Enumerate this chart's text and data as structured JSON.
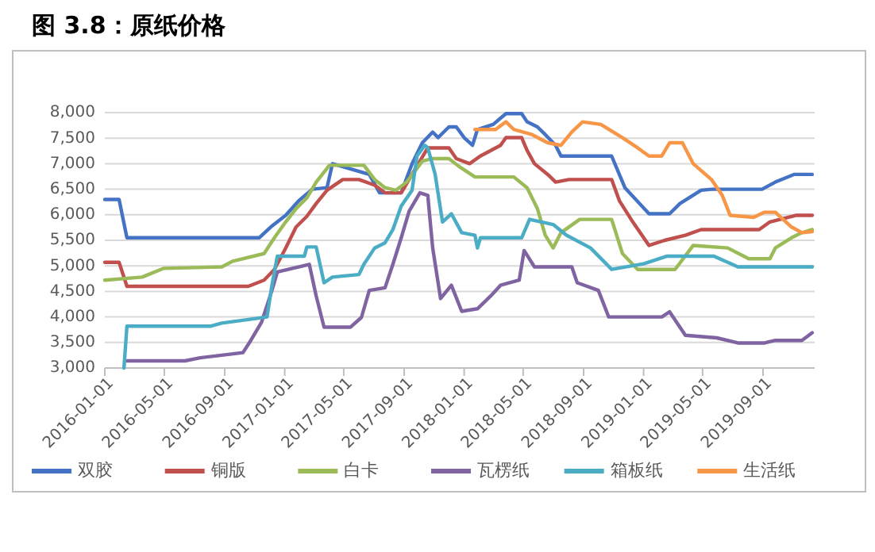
{
  "chart_data": {
    "type": "line",
    "title": "图 3.8：原纸价格",
    "legend": "bottom",
    "grid": "y",
    "marker": "none",
    "line_style": "solid",
    "xlim": [
      "2016-01-01",
      "2019-12-15"
    ],
    "xticks": [
      {
        "value": "2016-01-01",
        "label": "2016-01-01"
      },
      {
        "value": "2016-05-01",
        "label": "2016-05-01"
      },
      {
        "value": "2016-09-01",
        "label": "2016-09-01"
      },
      {
        "value": "2017-01-01",
        "label": "2017-01-01"
      },
      {
        "value": "2017-05-01",
        "label": "2017-05-01"
      },
      {
        "value": "2017-09-01",
        "label": "2017-09-01"
      },
      {
        "value": "2018-01-01",
        "label": "2018-01-01"
      },
      {
        "value": "2018-05-01",
        "label": "2018-05-01"
      },
      {
        "value": "2018-09-01",
        "label": "2018-09-01"
      },
      {
        "value": "2019-01-01",
        "label": "2019-01-01"
      },
      {
        "value": "2019-05-01",
        "label": "2019-05-01"
      },
      {
        "value": "2019-09-01",
        "label": "2019-09-01"
      }
    ],
    "ylim": [
      3000,
      8000
    ],
    "yticks": [
      {
        "value": 3000,
        "label": "3,000"
      },
      {
        "value": 3500,
        "label": "3,500"
      },
      {
        "value": 4000,
        "label": "4,000"
      },
      {
        "value": 4500,
        "label": "4,500"
      },
      {
        "value": 5000,
        "label": "5,000"
      },
      {
        "value": 5500,
        "label": "5,500"
      },
      {
        "value": 6000,
        "label": "6,000"
      },
      {
        "value": 6500,
        "label": "6,500"
      },
      {
        "value": 7000,
        "label": "7,000"
      },
      {
        "value": 7500,
        "label": "7,500"
      },
      {
        "value": 8000,
        "label": "8,000"
      }
    ],
    "series": [
      {
        "name": "双胶",
        "color": "#4472c4",
        "x": [
          "2016-01-01",
          "2016-01-30",
          "2016-02-15",
          "2016-11-10",
          "2016-12-06",
          "2017-01-03",
          "2017-01-29",
          "2017-02-26",
          "2017-03-28",
          "2017-04-08",
          "2017-06-22",
          "2017-07-13",
          "2017-08-26",
          "2017-09-17",
          "2017-10-08",
          "2017-10-29",
          "2017-11-09",
          "2017-12-01",
          "2017-12-16",
          "2018-01-01",
          "2018-01-18",
          "2018-01-28",
          "2018-03-01",
          "2018-03-27",
          "2018-04-28",
          "2018-05-09",
          "2018-05-30",
          "2018-06-15",
          "2018-07-06",
          "2018-07-17",
          "2018-10-28",
          "2018-11-24",
          "2019-01-12",
          "2019-02-23",
          "2019-03-16",
          "2019-04-28",
          "2019-05-19",
          "2019-08-30",
          "2019-09-26",
          "2019-11-03",
          "2019-12-10"
        ],
        "values": [
          6300,
          6300,
          5550,
          5550,
          5780,
          5990,
          6270,
          6500,
          6530,
          7000,
          6790,
          6430,
          6430,
          7000,
          7410,
          7620,
          7510,
          7720,
          7720,
          7510,
          7360,
          7670,
          7770,
          7980,
          7980,
          7820,
          7720,
          7570,
          7360,
          7150,
          7150,
          6530,
          6020,
          6020,
          6220,
          6480,
          6500,
          6500,
          6640,
          6790,
          6790
        ]
      },
      {
        "name": "铜版",
        "color": "#c0504d",
        "x": [
          "2016-01-01",
          "2016-01-30",
          "2016-02-15",
          "2016-10-19",
          "2016-11-20",
          "2016-12-11",
          "2017-01-03",
          "2017-01-24",
          "2017-02-15",
          "2017-03-06",
          "2017-03-28",
          "2017-04-29",
          "2017-06-01",
          "2017-07-03",
          "2017-07-24",
          "2017-08-26",
          "2017-09-17",
          "2017-10-19",
          "2017-12-01",
          "2017-12-16",
          "2018-01-12",
          "2018-02-03",
          "2018-03-16",
          "2018-03-27",
          "2018-04-28",
          "2018-05-09",
          "2018-05-24",
          "2018-06-20",
          "2018-07-06",
          "2018-08-02",
          "2018-10-28",
          "2018-11-13",
          "2018-12-10",
          "2019-01-12",
          "2019-02-13",
          "2019-03-27",
          "2019-04-28",
          "2019-08-24",
          "2019-09-15",
          "2019-11-08",
          "2019-12-10"
        ],
        "values": [
          5070,
          5070,
          4600,
          4600,
          4720,
          4930,
          5350,
          5760,
          5970,
          6220,
          6480,
          6690,
          6690,
          6580,
          6430,
          6430,
          6790,
          7310,
          7310,
          7100,
          7000,
          7150,
          7360,
          7510,
          7510,
          7260,
          7000,
          6790,
          6640,
          6690,
          6690,
          6270,
          5860,
          5400,
          5500,
          5600,
          5710,
          5710,
          5860,
          5990,
          5990
        ]
      },
      {
        "name": "白卡",
        "color": "#9bbb59",
        "x": [
          "2016-01-01",
          "2016-03-17",
          "2016-04-29",
          "2016-08-26",
          "2016-09-17",
          "2016-11-20",
          "2016-12-11",
          "2017-01-03",
          "2017-01-24",
          "2017-02-15",
          "2017-03-06",
          "2017-04-02",
          "2017-06-11",
          "2017-07-03",
          "2017-07-24",
          "2017-08-15",
          "2017-09-06",
          "2017-10-08",
          "2017-10-29",
          "2017-12-01",
          "2017-12-21",
          "2018-01-23",
          "2018-04-12",
          "2018-05-09",
          "2018-05-30",
          "2018-06-15",
          "2018-07-01",
          "2018-07-17",
          "2018-08-24",
          "2018-10-28",
          "2018-11-19",
          "2018-12-20",
          "2019-03-06",
          "2019-04-12",
          "2019-06-21",
          "2019-08-03",
          "2019-09-15",
          "2019-09-26",
          "2019-10-29",
          "2019-11-19",
          "2019-12-10"
        ],
        "values": [
          4720,
          4780,
          4950,
          4980,
          5090,
          5240,
          5550,
          5860,
          6120,
          6330,
          6640,
          6970,
          6970,
          6690,
          6530,
          6480,
          6640,
          7050,
          7100,
          7100,
          6950,
          6740,
          6740,
          6530,
          6120,
          5600,
          5350,
          5650,
          5910,
          5910,
          5240,
          4930,
          4930,
          5400,
          5350,
          5140,
          5140,
          5350,
          5550,
          5650,
          5710
        ]
      },
      {
        "name": "瓦楞纸",
        "color": "#8064a2",
        "x": [
          "2016-02-15",
          "2016-06-12",
          "2016-07-13",
          "2016-08-26",
          "2016-10-08",
          "2016-10-24",
          "2016-11-15",
          "2016-12-06",
          "2016-12-17",
          "2017-02-20",
          "2017-03-06",
          "2017-03-22",
          "2017-05-15",
          "2017-06-06",
          "2017-06-22",
          "2017-07-24",
          "2017-08-09",
          "2017-08-26",
          "2017-09-11",
          "2017-10-03",
          "2017-10-19",
          "2017-10-29",
          "2017-11-14",
          "2017-12-06",
          "2017-12-27",
          "2018-01-28",
          "2018-02-24",
          "2018-03-16",
          "2018-04-23",
          "2018-05-03",
          "2018-05-24",
          "2018-08-08",
          "2018-08-19",
          "2018-10-01",
          "2018-10-22",
          "2019-02-07",
          "2019-02-23",
          "2019-03-27",
          "2019-05-30",
          "2019-07-12",
          "2019-09-04",
          "2019-09-26",
          "2019-11-19",
          "2019-12-10"
        ],
        "values": [
          3140,
          3140,
          3200,
          3250,
          3300,
          3540,
          3900,
          4520,
          4880,
          5030,
          4410,
          3800,
          3800,
          3990,
          4520,
          4570,
          5030,
          5550,
          6070,
          6430,
          6380,
          5350,
          4360,
          4620,
          4110,
          4160,
          4410,
          4620,
          4720,
          5300,
          4980,
          4980,
          4670,
          4520,
          4000,
          4000,
          4100,
          3640,
          3590,
          3490,
          3490,
          3540,
          3540,
          3690
        ]
      },
      {
        "name": "箱板纸",
        "color": "#4bacc6",
        "x": [
          "2016-02-09",
          "2016-02-15",
          "2016-08-04",
          "2016-08-26",
          "2016-10-19",
          "2016-11-26",
          "2016-12-06",
          "2016-12-17",
          "2017-02-10",
          "2017-02-15",
          "2017-03-06",
          "2017-03-22",
          "2017-04-08",
          "2017-06-01",
          "2017-06-11",
          "2017-07-03",
          "2017-07-24",
          "2017-08-09",
          "2017-08-26",
          "2017-09-17",
          "2017-09-27",
          "2017-10-13",
          "2017-10-19",
          "2017-11-03",
          "2017-11-18",
          "2017-12-06",
          "2017-12-27",
          "2018-01-23",
          "2018-01-28",
          "2018-02-03",
          "2018-04-28",
          "2018-05-14",
          "2018-07-01",
          "2018-07-28",
          "2018-09-15",
          "2018-10-17",
          "2018-10-28",
          "2019-01-01",
          "2019-02-18",
          "2019-05-24",
          "2019-07-12",
          "2019-12-10"
        ],
        "values": [
          3000,
          3820,
          3820,
          3880,
          3950,
          4000,
          4620,
          5190,
          5190,
          5370,
          5370,
          4670,
          4780,
          4830,
          5030,
          5350,
          5450,
          5710,
          6170,
          6480,
          7150,
          7360,
          7310,
          6790,
          5860,
          6020,
          5650,
          5600,
          5350,
          5550,
          5550,
          5910,
          5810,
          5600,
          5350,
          5040,
          4930,
          5040,
          5190,
          5190,
          4980,
          4980
        ]
      },
      {
        "name": "生活纸",
        "color": "#f79646",
        "x": [
          "2018-01-23",
          "2018-03-06",
          "2018-03-27",
          "2018-04-12",
          "2018-05-19",
          "2018-06-20",
          "2018-07-17",
          "2018-08-08",
          "2018-08-30",
          "2018-10-06",
          "2018-11-19",
          "2018-12-20",
          "2019-01-12",
          "2019-02-07",
          "2019-02-23",
          "2019-03-21",
          "2019-04-12",
          "2019-05-19",
          "2019-06-10",
          "2019-06-26",
          "2019-08-13",
          "2019-09-04",
          "2019-09-26",
          "2019-10-29",
          "2019-11-19",
          "2019-12-10"
        ],
        "values": [
          7670,
          7670,
          7820,
          7670,
          7570,
          7410,
          7360,
          7620,
          7820,
          7770,
          7510,
          7310,
          7150,
          7150,
          7410,
          7410,
          7000,
          6690,
          6380,
          5990,
          5950,
          6050,
          6050,
          5760,
          5650,
          5670
        ]
      }
    ]
  }
}
